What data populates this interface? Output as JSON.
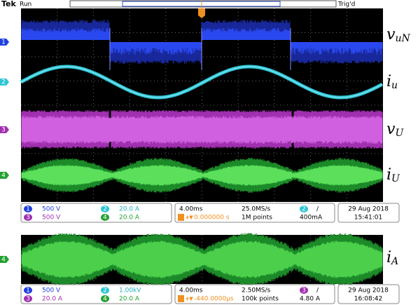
{
  "header": {
    "brand": "Tek",
    "status": "Run",
    "trigger_state": "Trig'd"
  },
  "display1": {
    "channel_markers": [
      "1",
      "2",
      "3",
      "4"
    ],
    "trace_labels": [
      {
        "symbol": "v",
        "subscript": "uN"
      },
      {
        "symbol": "i",
        "subscript": "u"
      },
      {
        "symbol": "v",
        "subscript": "U"
      },
      {
        "symbol": "i",
        "subscript": "U"
      }
    ],
    "readout": {
      "ch1": {
        "number": "1",
        "scale": "500 V"
      },
      "ch2": {
        "number": "2",
        "scale": "20.0 A"
      },
      "ch3": {
        "number": "3",
        "scale": "500 V"
      },
      "ch4": {
        "number": "4",
        "scale": "20.0 A"
      },
      "timebase": "4.00ms",
      "trigger_offset": "0.000000 s",
      "sample_rate": "25.0MS/s",
      "record_length": "1M points",
      "trigger_source": "2",
      "trigger_slope": "/",
      "trigger_level": "400mA",
      "date": "29 Aug 2018",
      "time": "15:41:01"
    }
  },
  "display2": {
    "channel_markers": [
      "4"
    ],
    "trace_labels": [
      {
        "symbol": "i",
        "subscript": "A"
      }
    ],
    "readout": {
      "ch1": {
        "number": "1",
        "scale": "500 V"
      },
      "ch2": {
        "number": "2",
        "scale": "1.00kV"
      },
      "ch3": {
        "number": "3",
        "scale": "20.0 A"
      },
      "ch4": {
        "number": "4",
        "scale": "20.0 A"
      },
      "timebase": "4.00ms",
      "trigger_offset": "-440.0000μs",
      "sample_rate": "2.50MS/s",
      "record_length": "100k points",
      "trigger_source": "3",
      "trigger_slope": "/",
      "trigger_level": "4.80 A",
      "date": "29 Aug 2018",
      "time": "16:08:42"
    }
  }
}
